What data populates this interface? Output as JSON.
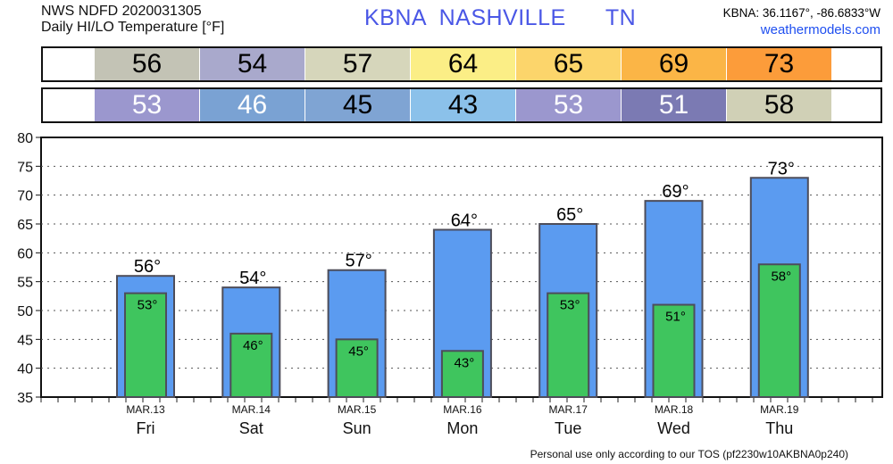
{
  "header": {
    "line1": "NWS NDFD 2020031305",
    "line2": "Daily HI/LO Temperature [°F]",
    "station": "KBNA  NASHVILLE      TN",
    "coords": "KBNA: 36.1167°, -86.6833°W",
    "site": "weathermodels.com"
  },
  "footer": "Personal use only according to our TOS (pf2230w10AKBNA0p240)",
  "hi_row": {
    "values": [
      "56",
      "54",
      "57",
      "64",
      "65",
      "69",
      "73"
    ],
    "colors": [
      "#c3c3b5",
      "#a9a9cc",
      "#d6d6bb",
      "#fbee86",
      "#fcd56b",
      "#fbb546",
      "#fc9c3a"
    ]
  },
  "lo_row": {
    "values": [
      "53",
      "46",
      "45",
      "43",
      "53",
      "51",
      "58"
    ],
    "colors": [
      "#9b97ce",
      "#7aa2d3",
      "#7fa4d3",
      "#8bc1ea",
      "#9b97ce",
      "#7b7ab3",
      "#d0d0b6"
    ],
    "text_colors": [
      "#ffffff",
      "#ffffff",
      "#000000",
      "#000000",
      "#ffffff",
      "#ffffff",
      "#000000"
    ]
  },
  "chart_data": {
    "type": "bar",
    "categories": [
      "Fri",
      "Sat",
      "Sun",
      "Mon",
      "Tue",
      "Wed",
      "Thu"
    ],
    "dates": [
      "MAR.13",
      "MAR.14",
      "MAR.15",
      "MAR.16",
      "MAR.17",
      "MAR.18",
      "MAR.19"
    ],
    "series": [
      {
        "values": [
          56,
          54,
          57,
          64,
          65,
          69,
          73
        ],
        "color": "#5b9bf0"
      },
      {
        "values": [
          53,
          46,
          45,
          43,
          53,
          51,
          58
        ],
        "color": "#3fc55e"
      }
    ],
    "hi_labels": [
      "56°",
      "54°",
      "57°",
      "64°",
      "65°",
      "69°",
      "73°"
    ],
    "lo_labels": [
      "53°",
      "46°",
      "45°",
      "43°",
      "53°",
      "51°",
      "58°"
    ],
    "ylim": [
      35,
      80
    ],
    "yticks": [
      "35",
      "40",
      "45",
      "50",
      "55",
      "60",
      "65",
      "70",
      "75",
      "80"
    ],
    "grid": true
  }
}
